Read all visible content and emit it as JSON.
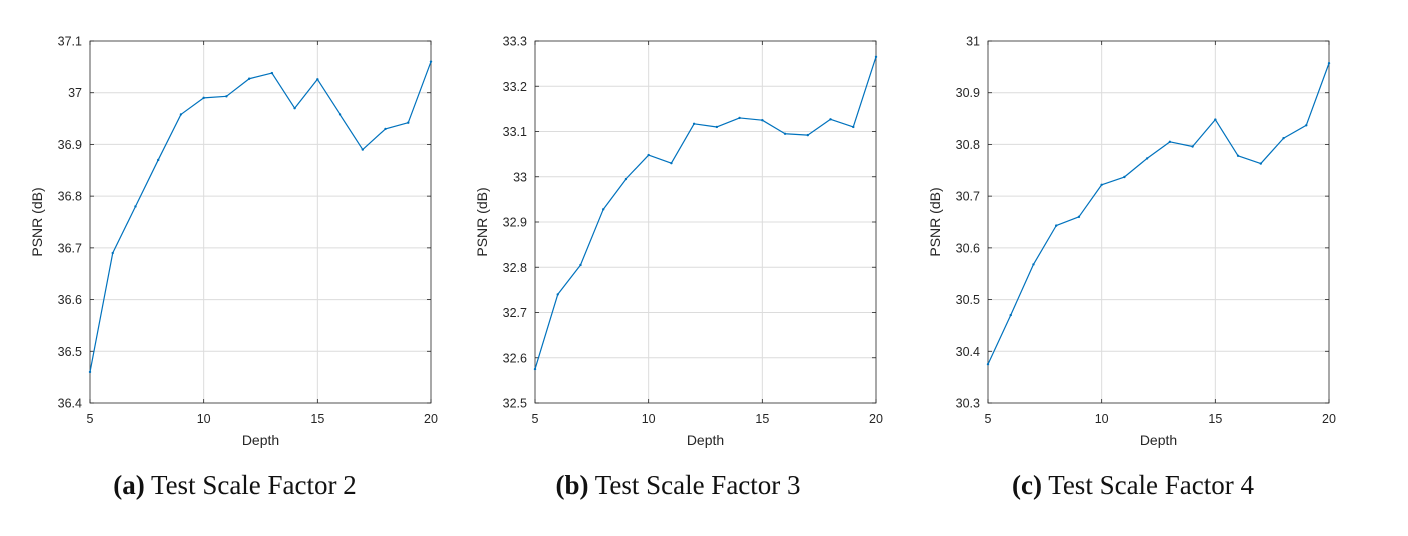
{
  "colors": {
    "line": "#0072BD",
    "grid": "#dcdcdc",
    "axis": "#262626"
  },
  "chart_data": [
    {
      "type": "line",
      "caption_tag": "(a)",
      "caption_text": "Test Scale Factor 2",
      "xlabel": "Depth",
      "ylabel": "PSNR (dB)",
      "xlim": [
        5,
        20
      ],
      "ylim": [
        36.4,
        37.1
      ],
      "xticks": [
        5,
        10,
        15,
        20
      ],
      "xtick_labels": [
        "5",
        "10",
        "15",
        "20"
      ],
      "yticks": [
        36.4,
        36.5,
        36.6,
        36.7,
        36.8,
        36.9,
        37.0,
        37.1
      ],
      "ytick_labels": [
        "36.4",
        "36.5",
        "36.6",
        "36.7",
        "36.8",
        "36.9",
        "37",
        "37.1"
      ],
      "grid": true,
      "x": [
        5,
        6,
        7,
        8,
        9,
        10,
        11,
        12,
        13,
        14,
        15,
        16,
        17,
        18,
        19,
        20
      ],
      "y": [
        36.46,
        36.69,
        36.78,
        36.87,
        36.958,
        36.99,
        36.993,
        37.027,
        37.038,
        36.97,
        37.026,
        36.958,
        36.89,
        36.93,
        36.942,
        37.06
      ]
    },
    {
      "type": "line",
      "caption_tag": "(b)",
      "caption_text": "Test Scale Factor 3",
      "xlabel": "Depth",
      "ylabel": "PSNR (dB)",
      "xlim": [
        5,
        20
      ],
      "ylim": [
        32.5,
        33.3
      ],
      "xticks": [
        5,
        10,
        15,
        20
      ],
      "xtick_labels": [
        "5",
        "10",
        "15",
        "20"
      ],
      "yticks": [
        32.5,
        32.6,
        32.7,
        32.8,
        32.9,
        33.0,
        33.1,
        33.2,
        33.3
      ],
      "ytick_labels": [
        "32.5",
        "32.6",
        "32.7",
        "32.8",
        "32.9",
        "33",
        "33.1",
        "33.2",
        "33.3"
      ],
      "grid": true,
      "x": [
        5,
        6,
        7,
        8,
        9,
        10,
        11,
        12,
        13,
        14,
        15,
        16,
        17,
        18,
        19,
        20
      ],
      "y": [
        32.575,
        32.74,
        32.805,
        32.928,
        32.995,
        33.048,
        33.03,
        33.117,
        33.11,
        33.13,
        33.125,
        33.095,
        33.092,
        33.127,
        33.11,
        33.265
      ]
    },
    {
      "type": "line",
      "caption_tag": "(c)",
      "caption_text": "Test Scale Factor 4",
      "xlabel": "Depth",
      "ylabel": "PSNR (dB)",
      "xlim": [
        5,
        20
      ],
      "ylim": [
        30.3,
        31.0
      ],
      "xticks": [
        5,
        10,
        15,
        20
      ],
      "xtick_labels": [
        "5",
        "10",
        "15",
        "20"
      ],
      "yticks": [
        30.3,
        30.4,
        30.5,
        30.6,
        30.7,
        30.8,
        30.9,
        31.0
      ],
      "ytick_labels": [
        "30.3",
        "30.4",
        "30.5",
        "30.6",
        "30.7",
        "30.8",
        "30.9",
        "31"
      ],
      "grid": true,
      "x": [
        5,
        6,
        7,
        8,
        9,
        10,
        11,
        12,
        13,
        14,
        15,
        16,
        17,
        18,
        19,
        20
      ],
      "y": [
        30.375,
        30.47,
        30.568,
        30.643,
        30.66,
        30.722,
        30.737,
        30.773,
        30.805,
        30.796,
        30.848,
        30.778,
        30.763,
        30.812,
        30.837,
        30.957
      ]
    }
  ]
}
